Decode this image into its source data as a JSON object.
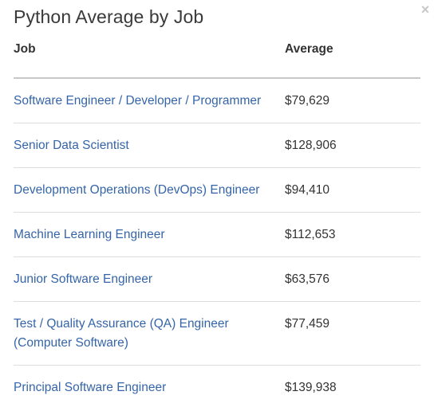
{
  "title": "Python Average by Job",
  "close_label": "×",
  "table": {
    "headers": {
      "job": "Job",
      "average": "Average"
    },
    "rows": [
      {
        "job": "Software Engineer / Developer / Programmer",
        "average": "$79,629"
      },
      {
        "job": "Senior Data Scientist",
        "average": "$128,906"
      },
      {
        "job": "Development Operations (DevOps) Engineer",
        "average": "$94,410"
      },
      {
        "job": "Machine Learning Engineer",
        "average": "$112,653"
      },
      {
        "job": "Junior Software Engineer",
        "average": "$63,576"
      },
      {
        "job": "Test / Quality Assurance (QA) Engineer (Computer Software)",
        "average": "$77,459"
      },
      {
        "job": "Principal Software Engineer",
        "average": "$139,938"
      }
    ]
  },
  "colors": {
    "link": "#3565a8",
    "text": "#333333",
    "divider": "#dedede",
    "header_rule": "#c8c8c8"
  }
}
